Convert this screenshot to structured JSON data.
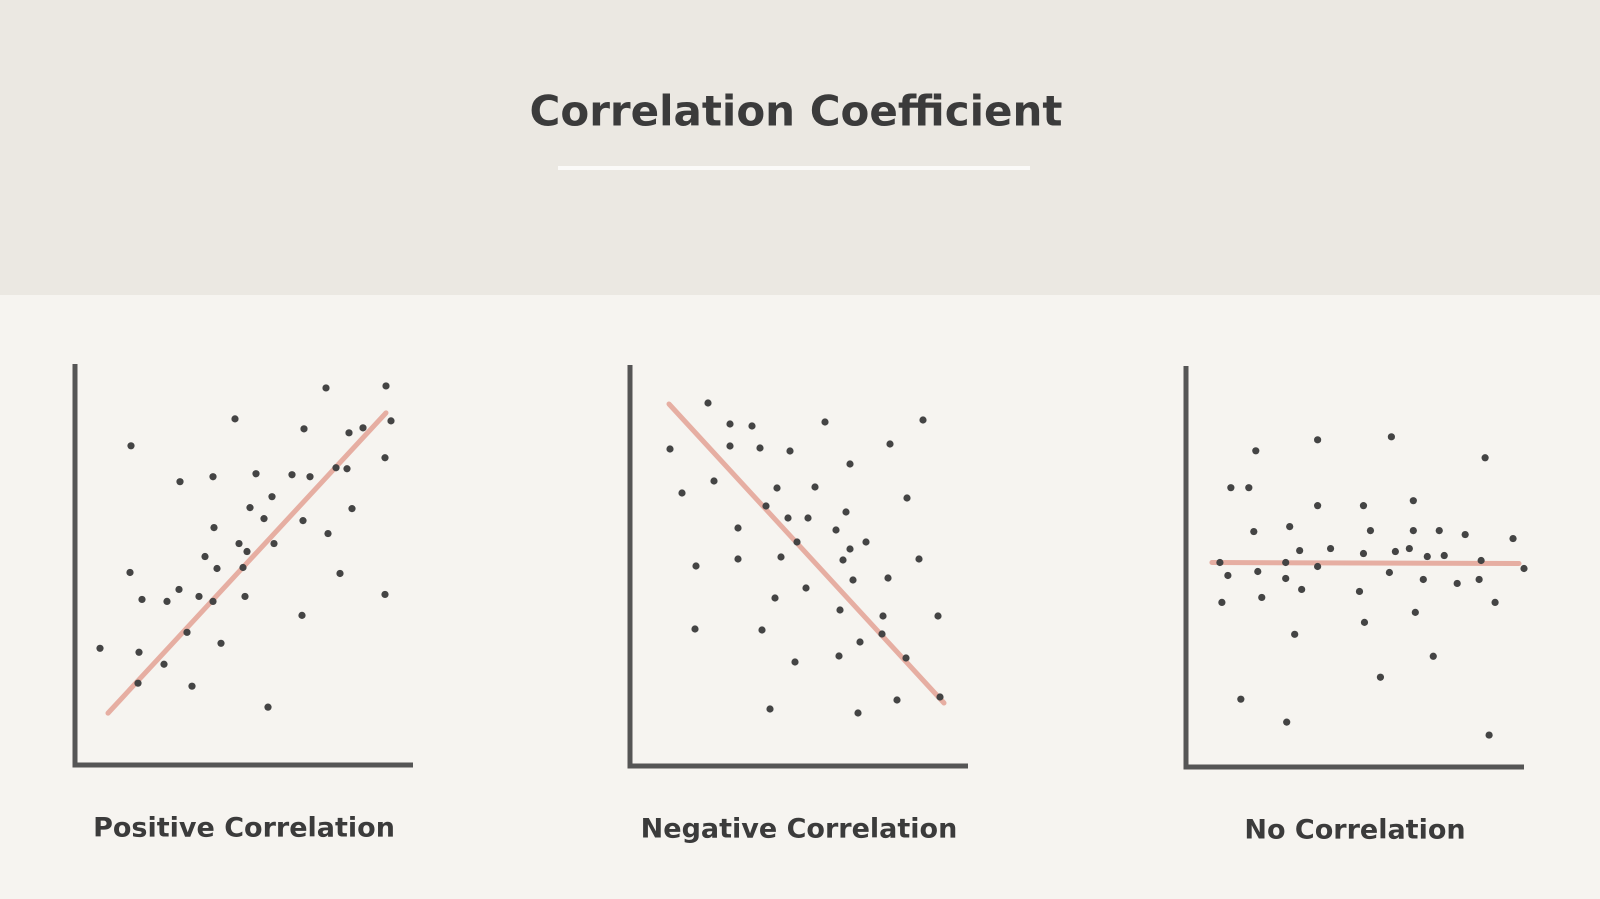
{
  "title": "Correlation Coefficient",
  "chart_data": [
    {
      "type": "scatter",
      "title": "Positive Correlation",
      "color": "#444444",
      "trend_color": "#e3a194",
      "xlim": [
        0,
        338
      ],
      "ylim": [
        0,
        402
      ],
      "x": [
        56,
        160,
        251,
        311,
        229,
        274,
        288,
        316,
        310,
        105,
        138,
        181,
        217,
        235,
        261,
        272,
        139,
        175,
        189,
        197,
        164,
        172,
        199,
        253,
        277,
        228,
        130,
        142,
        168,
        55,
        67,
        92,
        104,
        124,
        138,
        170,
        265,
        310,
        227,
        112,
        146,
        25,
        64,
        89,
        63,
        117,
        193
      ],
      "y": [
        320,
        347,
        378,
        380,
        337,
        333,
        338,
        345,
        308,
        284,
        289,
        292,
        291,
        289,
        298,
        297,
        238,
        258,
        247,
        269,
        222,
        214,
        222,
        232,
        257,
        245,
        209,
        197,
        198,
        193,
        166,
        164,
        176,
        169,
        164,
        169,
        192,
        171,
        150,
        133,
        122,
        117,
        113,
        101,
        82,
        79,
        58
      ],
      "trend": {
        "x": [
          33,
          311
        ],
        "y": [
          52,
          353
        ]
      }
    },
    {
      "type": "scatter",
      "title": "Negative Correlation",
      "color": "#444444",
      "trend_color": "#e3a194",
      "xlim": [
        0,
        338
      ],
      "ylim": [
        0,
        401
      ],
      "x": [
        78,
        100,
        122,
        195,
        293,
        40,
        100,
        130,
        160,
        220,
        260,
        84,
        52,
        147,
        185,
        277,
        136,
        158,
        178,
        216,
        108,
        206,
        236,
        167,
        220,
        213,
        289,
        66,
        108,
        151,
        223,
        258,
        176,
        145,
        210,
        253,
        308,
        65,
        132,
        230,
        252,
        209,
        276,
        165,
        267,
        310,
        140,
        228
      ],
      "y": [
        363,
        342,
        340,
        344,
        346,
        317,
        320,
        318,
        315,
        302,
        322,
        285,
        273,
        278,
        279,
        268,
        260,
        248,
        248,
        254,
        238,
        236,
        224,
        224,
        217,
        206,
        207,
        200,
        207,
        209,
        186,
        188,
        178,
        168,
        156,
        150,
        150,
        137,
        136,
        124,
        132,
        110,
        108,
        104,
        66,
        69,
        57,
        53
      ],
      "trend": {
        "x": [
          39,
          314
        ],
        "y": [
          362,
          63
        ]
      }
    },
    {
      "type": "scatter",
      "title": "No Correlation",
      "color": "#444444",
      "trend_color": "#e3a194",
      "xlim": [
        0,
        339
      ],
      "ylim": [
        0,
        402
      ],
      "x": [
        70,
        132,
        206,
        300,
        45,
        63,
        132,
        178,
        228,
        68,
        104,
        185,
        228,
        254,
        280,
        328,
        114,
        145,
        178,
        210,
        224,
        242,
        259,
        34,
        100,
        132,
        204,
        296,
        339,
        42,
        72,
        100,
        238,
        272,
        294,
        116,
        174,
        76,
        36,
        310,
        230,
        179,
        109,
        248,
        195,
        55,
        101,
        304
      ],
      "y": [
        317,
        328,
        331,
        310,
        280,
        280,
        262,
        262,
        267,
        236,
        241,
        237,
        237,
        237,
        233,
        229,
        217,
        219,
        214,
        216,
        219,
        211,
        212,
        205,
        205,
        201,
        195,
        207,
        199,
        192,
        196,
        189,
        188,
        184,
        188,
        178,
        176,
        170,
        165,
        165,
        155,
        145,
        133,
        111,
        90,
        68,
        45,
        32
      ],
      "trend": {
        "x": [
          26,
          334
        ],
        "y": [
          205,
          204
        ]
      }
    }
  ]
}
